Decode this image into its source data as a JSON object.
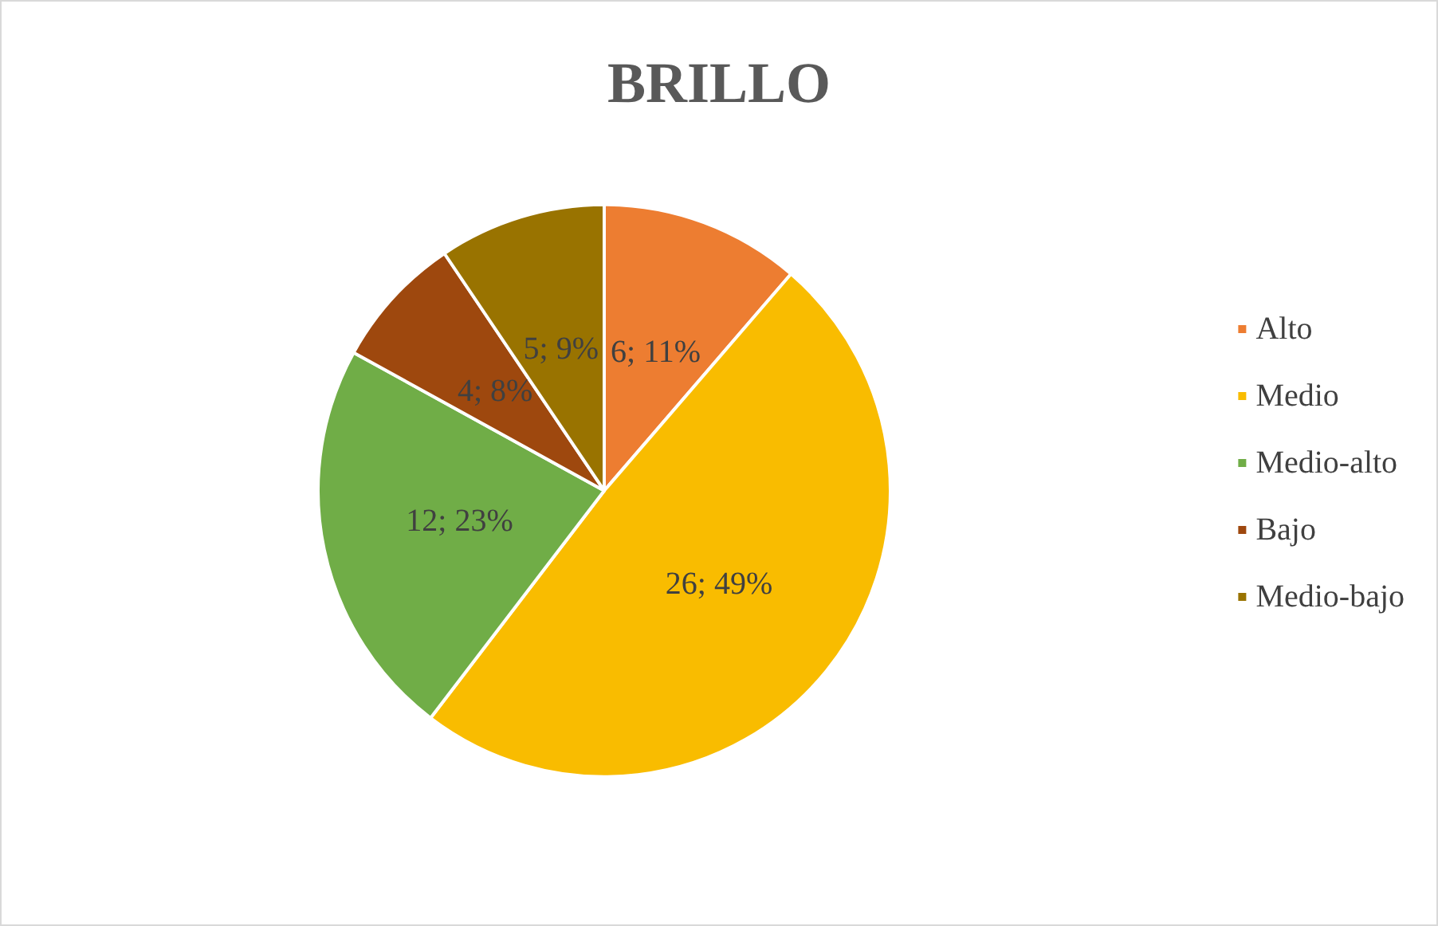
{
  "chart_data": {
    "type": "pie",
    "title": "BRILLO",
    "categories": [
      "Alto",
      "Medio",
      "Medio-alto",
      "Bajo",
      "Medio-bajo"
    ],
    "values": [
      6,
      26,
      12,
      4,
      5
    ],
    "value_labels": [
      "6; 11%",
      "26; 49%",
      "12; 23%",
      "4; 8%",
      "5; 9%"
    ],
    "colors": [
      "#ed7d31",
      "#f9bc00",
      "#70ad47",
      "#9e480e",
      "#997300"
    ],
    "legend": "right"
  }
}
